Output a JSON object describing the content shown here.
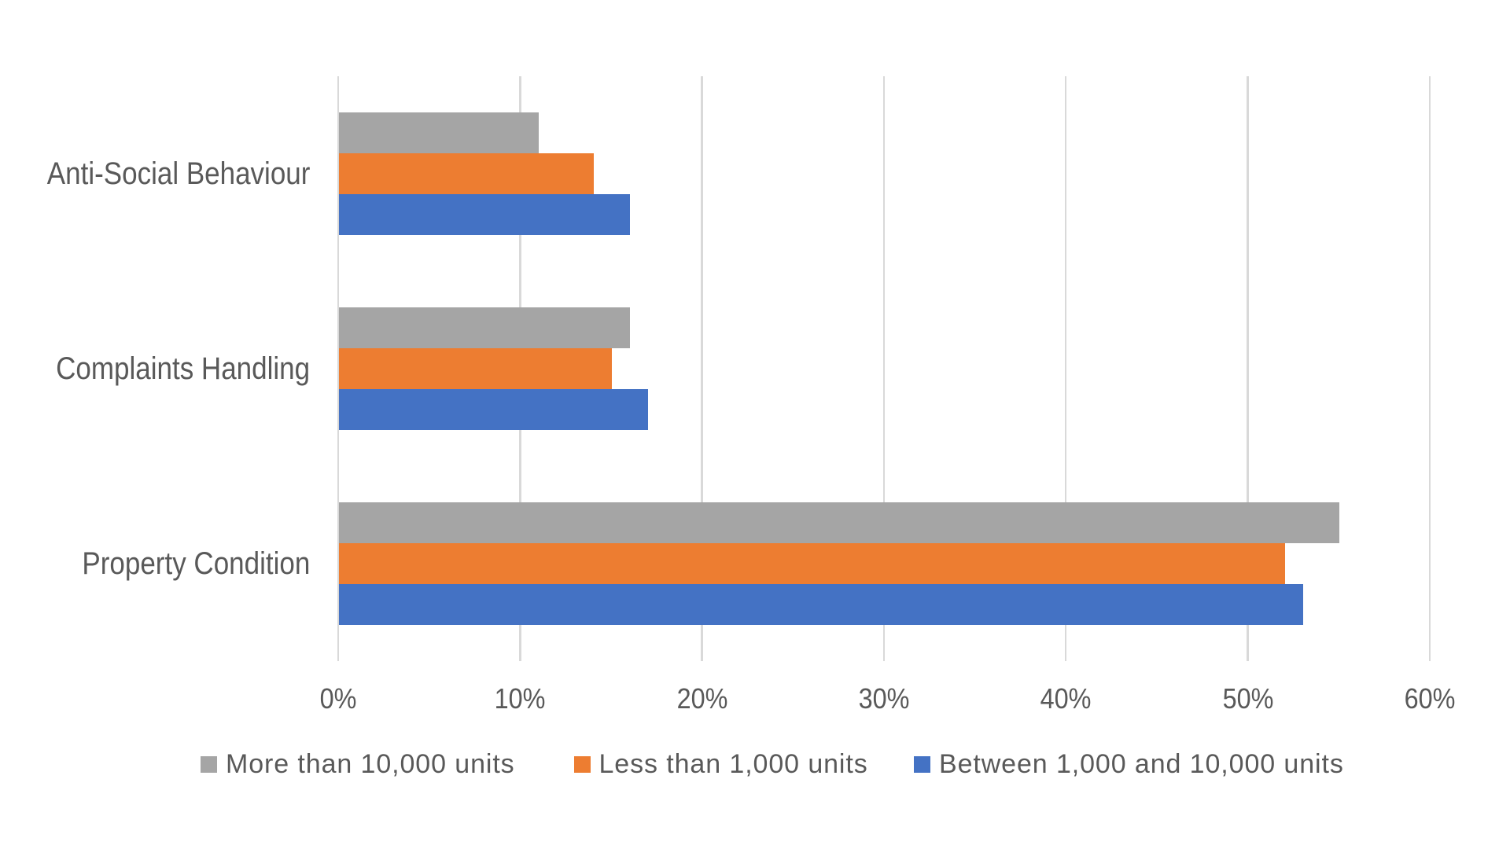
{
  "chart_data": {
    "type": "bar",
    "orientation": "horizontal",
    "categories": [
      "Anti-Social Behaviour",
      "Complaints Handling",
      "Property Condition"
    ],
    "series": [
      {
        "name": "More than 10,000 units",
        "color": "#A5A5A5",
        "values": [
          11,
          16,
          55
        ]
      },
      {
        "name": "Less than 1,000 units",
        "color": "#ED7D31",
        "values": [
          14,
          15,
          52
        ]
      },
      {
        "name": "Between 1,000 and 10,000 units",
        "color": "#4472C4",
        "values": [
          16,
          17,
          53
        ]
      }
    ],
    "title": "",
    "xlabel": "",
    "ylabel": "",
    "xlim": [
      0,
      60
    ],
    "x_tick_step": 10,
    "x_tick_labels": [
      "0%",
      "10%",
      "20%",
      "30%",
      "40%",
      "50%",
      "60%"
    ],
    "grid": true,
    "legend_position": "bottom"
  },
  "styles": {
    "gridline_color": "#D9D9D9",
    "text_color": "#595959",
    "background_color": "#FFFFFF"
  }
}
